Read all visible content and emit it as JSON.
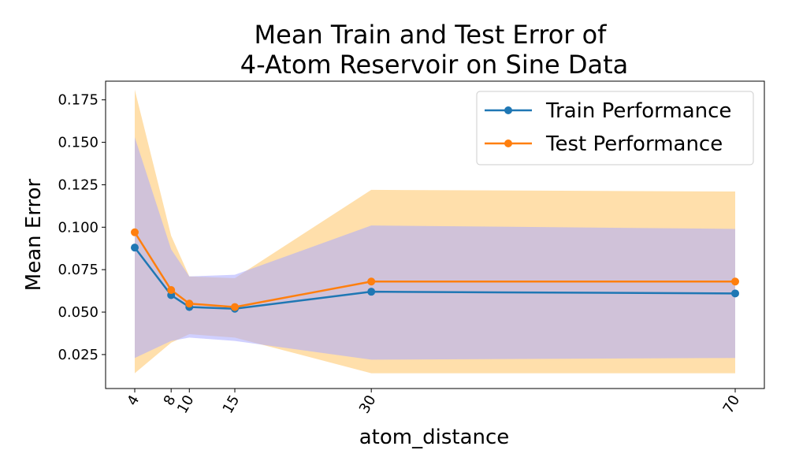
{
  "chart_data": {
    "type": "line",
    "title_line1": "Mean Train and Test Error of",
    "title_line2": "4-Atom Reservoir on Sine Data",
    "xlabel": "atom_distance",
    "ylabel": "Mean Error",
    "x": [
      4,
      8,
      10,
      15,
      30,
      70
    ],
    "x_tick_labels": [
      "4",
      "8",
      "10",
      "15",
      "30",
      "70"
    ],
    "y_ticks": [
      0.025,
      0.05,
      0.075,
      0.1,
      0.125,
      0.15,
      0.175
    ],
    "y_tick_labels": [
      "0.025",
      "0.050",
      "0.075",
      "0.100",
      "0.125",
      "0.150",
      "0.175"
    ],
    "ylim": [
      0.005,
      0.186
    ],
    "grid": false,
    "legend_position": "upper right",
    "series": [
      {
        "name": "Train Performance",
        "color": "#1f77b4",
        "band_color": "#aaaaff",
        "values": [
          0.088,
          0.06,
          0.053,
          0.052,
          0.062,
          0.061
        ],
        "lower": [
          0.023,
          0.033,
          0.035,
          0.033,
          0.022,
          0.023
        ],
        "upper": [
          0.153,
          0.087,
          0.071,
          0.072,
          0.101,
          0.099
        ]
      },
      {
        "name": "Test Performance",
        "color": "#ff7f0e",
        "band_color": "#ffdfab",
        "values": [
          0.097,
          0.063,
          0.055,
          0.053,
          0.068,
          0.068
        ],
        "lower": [
          0.014,
          0.032,
          0.037,
          0.035,
          0.014,
          0.014
        ],
        "upper": [
          0.181,
          0.095,
          0.071,
          0.07,
          0.122,
          0.121
        ]
      }
    ]
  }
}
